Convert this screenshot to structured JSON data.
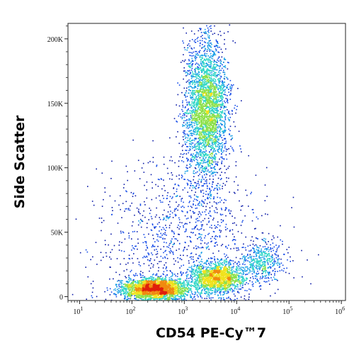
{
  "chart_data": {
    "type": "scatter",
    "subtype": "flow-cytometry-density-dot-plot",
    "xlabel": "CD54 PE-Cy™7",
    "ylabel": "Side Scatter",
    "x_scale": "log",
    "xlim": [
      6,
      1200000
    ],
    "ylim": [
      -3000,
      212000
    ],
    "x_ticks": [
      {
        "value": 10,
        "base": "10",
        "exp": "1"
      },
      {
        "value": 100,
        "base": "10",
        "exp": "2"
      },
      {
        "value": 1000,
        "base": "10",
        "exp": "3"
      },
      {
        "value": 10000,
        "base": "10",
        "exp": "4"
      },
      {
        "value": 100000,
        "base": "10",
        "exp": "5"
      },
      {
        "value": 1000000,
        "base": "10",
        "exp": "6"
      }
    ],
    "y_ticks": [
      {
        "value": 0,
        "label": "0"
      },
      {
        "value": 50000,
        "label": "50K"
      },
      {
        "value": 100000,
        "label": "100K"
      },
      {
        "value": 150000,
        "label": "150K"
      },
      {
        "value": 200000,
        "label": "200K"
      }
    ],
    "grid": false,
    "legend": "none",
    "color_scale": [
      "#0a1aa8",
      "#1048e8",
      "#1aa0e6",
      "#2ed6c6",
      "#8ce04a",
      "#f0e21c",
      "#f08a10",
      "#e0200c"
    ],
    "populations": [
      {
        "x_center": 280,
        "x_spread_decades": 0.3,
        "y_center": 6500,
        "y_spread": 4000,
        "share": 0.3
      },
      {
        "x_center": 4200,
        "x_spread_decades": 0.25,
        "y_center": 15000,
        "y_spread": 6000,
        "share": 0.18
      },
      {
        "x_center": 30000,
        "x_spread_decades": 0.2,
        "y_center": 27000,
        "y_spread": 8000,
        "share": 0.05
      },
      {
        "x_center": 2600,
        "x_spread_decades": 0.2,
        "y_center": 145000,
        "y_spread": 28000,
        "share": 0.35
      },
      {
        "x_center": 800,
        "x_spread_decades": 0.8,
        "y_center": 45000,
        "y_spread": 30000,
        "share": 0.12
      }
    ]
  }
}
